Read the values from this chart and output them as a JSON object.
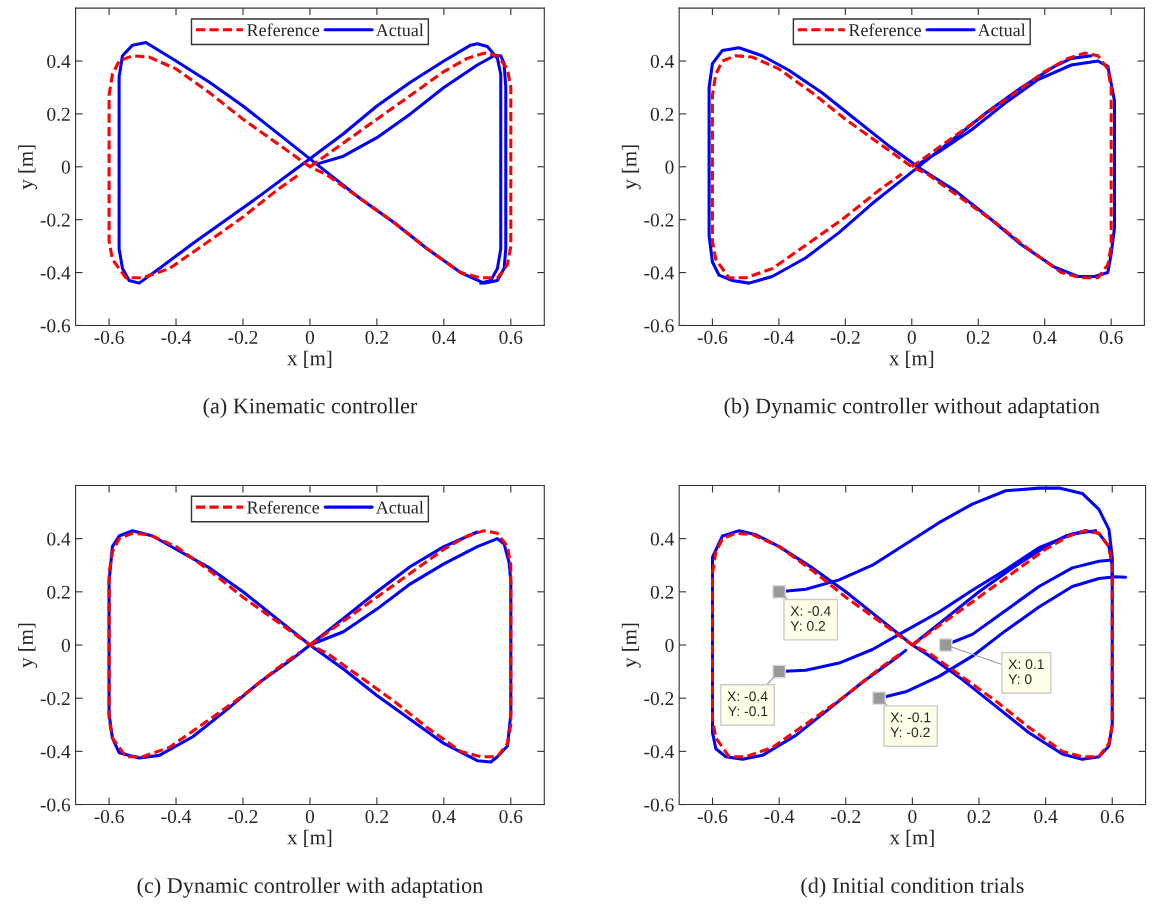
{
  "chart_data": [
    {
      "type": "line",
      "xlabel": "x [m]",
      "ylabel": "y [m]",
      "xlim": [
        -0.7,
        0.7
      ],
      "ylim": [
        -0.6,
        0.6
      ],
      "xticks": [
        -0.6,
        -0.4,
        -0.2,
        0,
        0.2,
        0.4,
        0.6
      ],
      "yticks": [
        -0.6,
        -0.4,
        -0.2,
        0,
        0.2,
        0.4
      ],
      "grid": false,
      "legend": "top",
      "annotations": [
        "(a) Kinematic controller"
      ],
      "series": [
        {
          "name": "Reference",
          "color": "#ff0000",
          "line_style": "dashed",
          "x": [
            0,
            0.1,
            0.2,
            0.3,
            0.4,
            0.47,
            0.52,
            0.56,
            0.59,
            0.6,
            0.6,
            0.6,
            0.59,
            0.56,
            0.51,
            0.45,
            0.35,
            0.25,
            0.15,
            0.05,
            0,
            -0.1,
            -0.2,
            -0.3,
            -0.4,
            -0.48,
            -0.53,
            -0.57,
            -0.59,
            -0.6,
            -0.6,
            -0.6,
            -0.59,
            -0.55,
            -0.5,
            -0.42,
            -0.3,
            -0.2,
            -0.1,
            -0.03
          ],
          "values": [
            0,
            0.09,
            0.18,
            0.27,
            0.36,
            0.41,
            0.43,
            0.42,
            0.37,
            0.3,
            0,
            -0.3,
            -0.37,
            -0.42,
            -0.42,
            -0.4,
            -0.31,
            -0.21,
            -0.12,
            -0.03,
            0,
            0.09,
            0.18,
            0.28,
            0.37,
            0.415,
            0.42,
            0.4,
            0.35,
            0.27,
            0,
            -0.28,
            -0.35,
            -0.42,
            -0.42,
            -0.385,
            -0.28,
            -0.19,
            -0.09,
            -0.027
          ]
        },
        {
          "name": "Actual",
          "color": "#0000ff",
          "line_style": "solid",
          "x": [
            0.02,
            0.1,
            0.2,
            0.3,
            0.4,
            0.5,
            0.55,
            0.57,
            0.58,
            0.585,
            0.585,
            0.58,
            0.56,
            0.52,
            0.45,
            0.35,
            0.25,
            0.15,
            0.05,
            0,
            -0.1,
            -0.2,
            -0.3,
            -0.4,
            -0.49,
            -0.53,
            -0.56,
            -0.57,
            -0.57,
            -0.57,
            -0.56,
            -0.54,
            -0.51,
            -0.45,
            -0.35,
            -0.25,
            -0.15,
            -0.05,
            0,
            0.1,
            0.2,
            0.3,
            0.4,
            0.48,
            0.5,
            0.53,
            0.56,
            0.57,
            0.57,
            0.57,
            0.56,
            0.54,
            0.51
          ],
          "values": [
            0.01,
            0.04,
            0.11,
            0.2,
            0.3,
            0.385,
            0.42,
            0.42,
            0.39,
            0.3,
            -0.31,
            -0.385,
            -0.43,
            -0.44,
            -0.4,
            -0.31,
            -0.21,
            -0.12,
            -0.02,
            0.03,
            0.13,
            0.23,
            0.32,
            0.4,
            0.47,
            0.46,
            0.42,
            0.34,
            0.25,
            -0.31,
            -0.385,
            -0.43,
            -0.44,
            -0.385,
            -0.29,
            -0.2,
            -0.11,
            -0.016,
            0.03,
            0.125,
            0.23,
            0.32,
            0.4,
            0.46,
            0.465,
            0.455,
            0.41,
            0.35,
            0.25,
            -0.31,
            -0.385,
            -0.43,
            -0.44
          ]
        }
      ]
    },
    {
      "type": "line",
      "xlabel": "x [m]",
      "ylabel": "y [m]",
      "xlim": [
        -0.7,
        0.7
      ],
      "ylim": [
        -0.6,
        0.6
      ],
      "xticks": [
        -0.6,
        -0.4,
        -0.2,
        0,
        0.2,
        0.4,
        0.6
      ],
      "yticks": [
        -0.6,
        -0.4,
        -0.2,
        0,
        0.2,
        0.4
      ],
      "grid": false,
      "legend": "top",
      "annotations": [
        "(b) Dynamic controller without adaptation"
      ],
      "series": [
        {
          "name": "Reference",
          "color": "#ff0000",
          "line_style": "dashed",
          "x": [
            0,
            0.1,
            0.2,
            0.3,
            0.4,
            0.47,
            0.52,
            0.56,
            0.59,
            0.6,
            0.6,
            0.6,
            0.59,
            0.56,
            0.51,
            0.45,
            0.35,
            0.25,
            0.15,
            0.05,
            0,
            -0.1,
            -0.2,
            -0.3,
            -0.4,
            -0.48,
            -0.53,
            -0.57,
            -0.59,
            -0.6,
            -0.6,
            -0.6,
            -0.59,
            -0.55,
            -0.5,
            -0.42,
            -0.3,
            -0.2,
            -0.1,
            -0.03
          ],
          "values": [
            0,
            0.09,
            0.18,
            0.27,
            0.36,
            0.41,
            0.43,
            0.42,
            0.37,
            0.3,
            0,
            -0.3,
            -0.37,
            -0.42,
            -0.42,
            -0.4,
            -0.31,
            -0.21,
            -0.12,
            -0.03,
            0,
            0.09,
            0.18,
            0.28,
            0.37,
            0.415,
            0.42,
            0.4,
            0.35,
            0.27,
            0,
            -0.28,
            -0.35,
            -0.42,
            -0.42,
            -0.385,
            -0.28,
            -0.19,
            -0.09,
            -0.027
          ]
        },
        {
          "name": "Actual",
          "color": "#0000ff",
          "line_style": "solid",
          "x": [
            0.017,
            0.08,
            0.18,
            0.28,
            0.38,
            0.48,
            0.56,
            0.59,
            0.6,
            0.61,
            0.61,
            0.6,
            0.59,
            0.55,
            0.5,
            0.43,
            0.33,
            0.23,
            0.13,
            0.03,
            -0.07,
            -0.17,
            -0.27,
            -0.37,
            -0.45,
            -0.52,
            -0.57,
            -0.6,
            -0.61,
            -0.61,
            -0.61,
            -0.6,
            -0.58,
            -0.54,
            -0.49,
            -0.42,
            -0.32,
            -0.22,
            -0.12,
            -0.02,
            0.03,
            0.13,
            0.23,
            0.33,
            0.43,
            0.48,
            0.54
          ],
          "values": [
            0.008,
            0.055,
            0.14,
            0.24,
            0.33,
            0.385,
            0.4,
            0.38,
            0.315,
            0.25,
            -0.23,
            -0.33,
            -0.4,
            -0.415,
            -0.415,
            -0.38,
            -0.295,
            -0.19,
            -0.09,
            -0.01,
            0.08,
            0.18,
            0.28,
            0.365,
            0.42,
            0.45,
            0.44,
            0.39,
            0.3,
            0.19,
            -0.26,
            -0.36,
            -0.41,
            -0.43,
            -0.44,
            -0.415,
            -0.345,
            -0.25,
            -0.14,
            -0.04,
            0.01,
            0.11,
            0.21,
            0.3,
            0.38,
            0.41,
            0.42
          ]
        }
      ]
    },
    {
      "type": "line",
      "xlabel": "x [m]",
      "ylabel": "y [m]",
      "xlim": [
        -0.7,
        0.7
      ],
      "ylim": [
        -0.6,
        0.6
      ],
      "xticks": [
        -0.6,
        -0.4,
        -0.2,
        0,
        0.2,
        0.4,
        0.6
      ],
      "yticks": [
        -0.6,
        -0.4,
        -0.2,
        0,
        0.2,
        0.4
      ],
      "grid": false,
      "legend": "top",
      "annotations": [
        "(c) Dynamic controller with adaptation"
      ],
      "series": [
        {
          "name": "Reference",
          "color": "#ff0000",
          "line_style": "dashed",
          "x": [
            0,
            0.1,
            0.2,
            0.3,
            0.4,
            0.47,
            0.52,
            0.56,
            0.59,
            0.6,
            0.6,
            0.6,
            0.59,
            0.56,
            0.51,
            0.45,
            0.35,
            0.25,
            0.15,
            0.05,
            0,
            -0.1,
            -0.2,
            -0.3,
            -0.4,
            -0.48,
            -0.53,
            -0.57,
            -0.59,
            -0.6,
            -0.6,
            -0.6,
            -0.59,
            -0.55,
            -0.5,
            -0.42,
            -0.3,
            -0.2,
            -0.1,
            -0.03
          ],
          "values": [
            0,
            0.09,
            0.18,
            0.27,
            0.36,
            0.41,
            0.43,
            0.42,
            0.37,
            0.3,
            0,
            -0.3,
            -0.37,
            -0.42,
            -0.42,
            -0.4,
            -0.31,
            -0.21,
            -0.12,
            -0.03,
            0,
            0.09,
            0.18,
            0.28,
            0.37,
            0.415,
            0.42,
            0.4,
            0.35,
            0.27,
            0,
            -0.28,
            -0.35,
            -0.42,
            -0.42,
            -0.385,
            -0.28,
            -0.19,
            -0.09,
            -0.027
          ]
        },
        {
          "name": "Actual",
          "color": "#0000ff",
          "line_style": "solid",
          "x": [
            0,
            0.1,
            0.2,
            0.3,
            0.4,
            0.5,
            0.56,
            0.58,
            0.595,
            0.6,
            0.6,
            0.59,
            0.56,
            0.54,
            0.5,
            0.4,
            0.3,
            0.2,
            0.1,
            0,
            -0.1,
            -0.2,
            -0.3,
            -0.4,
            -0.47,
            -0.53,
            -0.57,
            -0.59,
            -0.6,
            -0.6,
            -0.59,
            -0.57,
            -0.51,
            -0.45,
            -0.35,
            -0.25,
            -0.15,
            -0.05,
            0,
            0.1,
            0.2,
            0.3,
            0.4,
            0.5
          ],
          "values": [
            0,
            0.05,
            0.135,
            0.23,
            0.305,
            0.37,
            0.4,
            0.38,
            0.31,
            0.24,
            -0.26,
            -0.38,
            -0.42,
            -0.44,
            -0.435,
            -0.37,
            -0.28,
            -0.19,
            -0.09,
            0,
            0.1,
            0.2,
            0.29,
            0.36,
            0.41,
            0.43,
            0.41,
            0.37,
            0.24,
            -0.26,
            -0.35,
            -0.405,
            -0.425,
            -0.415,
            -0.345,
            -0.245,
            -0.14,
            -0.05,
            0,
            0.1,
            0.2,
            0.295,
            0.37,
            0.425
          ]
        }
      ]
    },
    {
      "type": "line",
      "xlabel": "x [m]",
      "ylabel": "y [m]",
      "xlim": [
        -0.7,
        0.7
      ],
      "ylim": [
        -0.6,
        0.6
      ],
      "xticks": [
        -0.6,
        -0.4,
        -0.2,
        0,
        0.2,
        0.4,
        0.6
      ],
      "yticks": [
        -0.6,
        -0.4,
        -0.2,
        0,
        0.2,
        0.4
      ],
      "grid": false,
      "legend": false,
      "annotations": [
        "(d) Initial condition trials",
        {
          "text": "X: -0.4\nY: 0.2",
          "x": -0.4,
          "y": 0.2
        },
        {
          "text": "X: -0.4\nY: -0.1",
          "x": -0.4,
          "y": -0.1
        },
        {
          "text": "X: -0.1\nY: -0.2",
          "x": -0.1,
          "y": -0.2
        },
        {
          "text": "X: 0.1\nY: 0",
          "x": 0.1,
          "y": 0
        }
      ],
      "series": [
        {
          "color": "#0000ff",
          "line_style": "solid",
          "x": [
            -0.4,
            -0.32,
            -0.22,
            -0.12,
            -0.02,
            0.08,
            0.18,
            0.28,
            0.38,
            0.44,
            0.51,
            0.56,
            0.59,
            0.6,
            0.6
          ],
          "values": [
            0.2,
            0.21,
            0.245,
            0.3,
            0.38,
            0.46,
            0.53,
            0.58,
            0.59,
            0.59,
            0.57,
            0.51,
            0.435,
            0.33,
            0.245
          ]
        },
        {
          "color": "#0000ff",
          "line_style": "solid",
          "x": [
            -0.4,
            -0.32,
            -0.22,
            -0.12,
            -0.02,
            0.08,
            0.18,
            0.28,
            0.38,
            0.48,
            0.55
          ],
          "values": [
            -0.1,
            -0.095,
            -0.068,
            -0.017,
            0.054,
            0.124,
            0.206,
            0.283,
            0.366,
            0.417,
            0.43
          ]
        },
        {
          "color": "#0000ff",
          "line_style": "solid",
          "x": [
            -0.1,
            -0.02,
            0.08,
            0.18,
            0.28,
            0.38,
            0.48,
            0.56,
            0.61,
            0.64
          ],
          "values": [
            -0.2,
            -0.176,
            -0.118,
            -0.042,
            0.054,
            0.143,
            0.22,
            0.25,
            0.257,
            0.255
          ]
        },
        {
          "color": "#0000ff",
          "line_style": "solid",
          "x": [
            0.1,
            0.18,
            0.28,
            0.38,
            0.48,
            0.56,
            0.6
          ],
          "values": [
            0,
            0.04,
            0.13,
            0.22,
            0.29,
            0.315,
            0.32
          ]
        },
        {
          "color": "#0000ff",
          "line_style": "solid",
          "x": [
            0,
            0.1,
            0.2,
            0.3,
            0.4,
            0.46,
            0.52,
            0.56,
            0.59,
            0.6,
            0.6,
            0.59,
            0.56,
            0.51,
            0.45,
            0.35,
            0.25,
            0.15,
            0.05,
            0,
            -0.1,
            -0.2,
            -0.3,
            -0.4,
            -0.47,
            -0.52,
            -0.57,
            -0.6,
            -0.6,
            -0.6,
            -0.59,
            -0.56,
            -0.51,
            -0.45,
            -0.35,
            -0.25,
            -0.15,
            -0.05,
            -0.02
          ],
          "values": [
            0,
            0.1,
            0.2,
            0.29,
            0.37,
            0.41,
            0.43,
            0.42,
            0.37,
            0.3,
            -0.3,
            -0.38,
            -0.42,
            -0.43,
            -0.41,
            -0.33,
            -0.23,
            -0.13,
            -0.04,
            0,
            0.1,
            0.2,
            0.29,
            0.37,
            0.415,
            0.43,
            0.41,
            0.33,
            0,
            -0.33,
            -0.39,
            -0.42,
            -0.43,
            -0.415,
            -0.34,
            -0.24,
            -0.14,
            -0.05,
            -0.02
          ]
        },
        {
          "color": "#ff0000",
          "line_style": "dashed",
          "x": [
            0,
            0.1,
            0.2,
            0.3,
            0.4,
            0.47,
            0.52,
            0.56,
            0.59,
            0.6,
            0.6,
            0.6,
            0.59,
            0.56,
            0.51,
            0.45,
            0.35,
            0.25,
            0.15,
            0.05,
            0,
            -0.1,
            -0.2,
            -0.3,
            -0.4,
            -0.48,
            -0.53,
            -0.57,
            -0.59,
            -0.6,
            -0.6,
            -0.6,
            -0.59,
            -0.55,
            -0.5,
            -0.42,
            -0.3,
            -0.2,
            -0.1,
            -0.03
          ],
          "values": [
            0,
            0.09,
            0.18,
            0.27,
            0.36,
            0.41,
            0.43,
            0.42,
            0.37,
            0.3,
            0,
            -0.3,
            -0.37,
            -0.42,
            -0.42,
            -0.4,
            -0.31,
            -0.21,
            -0.12,
            -0.03,
            0,
            0.09,
            0.18,
            0.28,
            0.37,
            0.415,
            0.42,
            0.4,
            0.35,
            0.27,
            0,
            -0.28,
            -0.35,
            -0.42,
            -0.42,
            -0.385,
            -0.28,
            -0.19,
            -0.09,
            -0.027
          ]
        },
        {
          "type": "scatter",
          "color": "#999999",
          "marker": "square",
          "x": [
            -0.4,
            -0.4,
            -0.1,
            0.1
          ],
          "values": [
            0.2,
            -0.1,
            -0.2,
            0
          ]
        }
      ]
    }
  ]
}
